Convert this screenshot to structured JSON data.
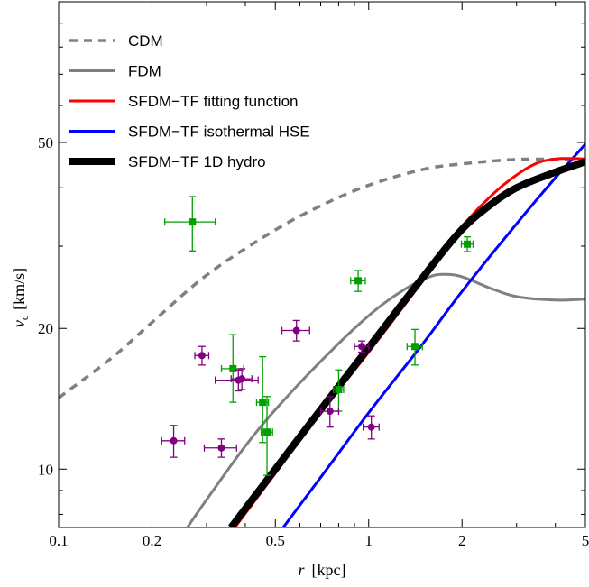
{
  "chart_data": {
    "type": "line",
    "xlabel": {
      "symbol": "r",
      "unit": "[kpc]"
    },
    "ylabel": {
      "symbol": "v",
      "subscript": "c",
      "unit": "[km/s]"
    },
    "xscale": "log",
    "yscale": "log",
    "xlim": [
      0.1,
      5
    ],
    "ylim": [
      7.5,
      100
    ],
    "xticks": [
      {
        "value": 0.1,
        "label": "0.1"
      },
      {
        "value": 0.2,
        "label": "0.2"
      },
      {
        "value": 0.5,
        "label": "0.5"
      },
      {
        "value": 1,
        "label": "1"
      },
      {
        "value": 2,
        "label": "2"
      },
      {
        "value": 5,
        "label": "5"
      }
    ],
    "yticks": [
      {
        "value": 10,
        "label": "10"
      },
      {
        "value": 20,
        "label": "20"
      },
      {
        "value": 50,
        "label": "50"
      }
    ],
    "legend_position": "top-left",
    "series": [
      {
        "name": "CDM",
        "color": "#808080",
        "style": "dashed",
        "width": 3.5,
        "x": [
          0.1,
          0.15,
          0.2,
          0.3,
          0.5,
          0.7,
          1.0,
          1.5,
          2.0,
          3.0,
          4.0,
          5.0
        ],
        "y": [
          14.2,
          17.4,
          20.6,
          26.0,
          32.5,
          36.6,
          40.5,
          43.8,
          45.0,
          46.0,
          46.0,
          45.8
        ]
      },
      {
        "name": "FDM",
        "color": "#808080",
        "style": "solid",
        "width": 3,
        "x": [
          0.26,
          0.3,
          0.4,
          0.5,
          0.7,
          1.0,
          1.3,
          1.6,
          1.8,
          2.0,
          2.5,
          3.0,
          4.0,
          5.0
        ],
        "y": [
          7.5,
          8.6,
          11.2,
          13.4,
          17.0,
          21.3,
          24.2,
          25.9,
          26.1,
          25.8,
          24.3,
          23.4,
          23.0,
          23.1
        ]
      },
      {
        "name": "SFDM−TF fitting function",
        "color": "#ff0000",
        "style": "solid",
        "width": 3,
        "x": [
          0.37,
          0.5,
          0.7,
          1.0,
          1.5,
          2.0,
          2.5,
          3.0,
          3.5,
          4.0,
          4.5,
          5.0
        ],
        "y": [
          7.5,
          9.8,
          13.2,
          17.8,
          25.4,
          33.0,
          38.6,
          42.6,
          45.2,
          46.1,
          46.2,
          46.1
        ]
      },
      {
        "name": "SFDM−TF isothermal HSE",
        "color": "#0000ff",
        "style": "solid",
        "width": 3,
        "x": [
          0.53,
          0.7,
          1.0,
          1.5,
          2.0,
          3.0,
          4.0,
          5.0
        ],
        "y": [
          7.5,
          9.6,
          13.2,
          18.6,
          24.0,
          33.5,
          42.0,
          49.6
        ]
      },
      {
        "name": "SFDM−TF 1D hydro",
        "color": "#000000",
        "style": "solid",
        "width": 8,
        "x": [
          0.36,
          0.5,
          0.7,
          1.0,
          1.5,
          2.0,
          2.5,
          3.0,
          4.0,
          5.0
        ],
        "y": [
          7.5,
          10.0,
          13.4,
          18.2,
          25.8,
          32.6,
          37.0,
          40.0,
          43.2,
          45.5
        ]
      }
    ],
    "data_points": [
      {
        "group": "green",
        "color": "#00a000",
        "marker": "square",
        "x": 0.27,
        "y": 33.8,
        "xerr": [
          0.05,
          0.05
        ],
        "yerr": [
          4.5,
          4.5
        ]
      },
      {
        "group": "green",
        "color": "#00a000",
        "marker": "square",
        "x": 0.365,
        "y": 16.4,
        "xerr": [
          0.03,
          0.03
        ],
        "yerr": [
          2.5,
          3.0
        ]
      },
      {
        "group": "green",
        "color": "#00a000",
        "marker": "square",
        "x": 0.455,
        "y": 13.9,
        "xerr": [
          0.02,
          0.02
        ],
        "yerr": [
          2.5,
          3.5
        ]
      },
      {
        "group": "green",
        "color": "#00a000",
        "marker": "square",
        "x": 0.47,
        "y": 12.0,
        "xerr": [
          0.02,
          0.02
        ],
        "yerr": [
          2.3,
          2.3
        ]
      },
      {
        "group": "green",
        "color": "#00a000",
        "marker": "square",
        "x": 0.8,
        "y": 14.8,
        "xerr": [
          0.03,
          0.03
        ],
        "yerr": [
          1.5,
          1.5
        ]
      },
      {
        "group": "green",
        "color": "#00a000",
        "marker": "square",
        "x": 0.925,
        "y": 25.3,
        "xerr": [
          0.05,
          0.05
        ],
        "yerr": [
          1.3,
          1.3
        ]
      },
      {
        "group": "green",
        "color": "#00a000",
        "marker": "square",
        "x": 1.41,
        "y": 18.3,
        "xerr": [
          0.08,
          0.08
        ],
        "yerr": [
          1.6,
          1.6
        ]
      },
      {
        "group": "green",
        "color": "#00a000",
        "marker": "square",
        "x": 2.08,
        "y": 30.3,
        "xerr": [
          0.09,
          0.09
        ],
        "yerr": [
          1.1,
          1.1
        ]
      },
      {
        "group": "purple",
        "color": "#800080",
        "marker": "circle",
        "x": 0.235,
        "y": 11.5,
        "xerr": [
          0.02,
          0.02
        ],
        "yerr": [
          0.9,
          0.9
        ]
      },
      {
        "group": "purple",
        "color": "#800080",
        "marker": "circle",
        "x": 0.29,
        "y": 17.5,
        "xerr": [
          0.015,
          0.015
        ],
        "yerr": [
          0.8,
          0.8
        ]
      },
      {
        "group": "purple",
        "color": "#800080",
        "marker": "circle",
        "x": 0.335,
        "y": 11.1,
        "xerr": [
          0.04,
          0.04
        ],
        "yerr": [
          0.5,
          0.5
        ]
      },
      {
        "group": "purple",
        "color": "#800080",
        "marker": "circle",
        "x": 0.38,
        "y": 15.5,
        "xerr": [
          0.06,
          0.06
        ],
        "yerr": [
          0.8,
          0.8
        ]
      },
      {
        "group": "purple",
        "color": "#800080",
        "marker": "circle",
        "x": 0.39,
        "y": 15.6,
        "xerr": [
          0.03,
          0.03
        ],
        "yerr": [
          0.8,
          0.8
        ]
      },
      {
        "group": "purple",
        "color": "#800080",
        "marker": "circle",
        "x": 0.585,
        "y": 19.8,
        "xerr": [
          0.06,
          0.06
        ],
        "yerr": [
          1.0,
          1.0
        ]
      },
      {
        "group": "purple",
        "color": "#800080",
        "marker": "circle",
        "x": 0.75,
        "y": 13.3,
        "xerr": [
          0.05,
          0.05
        ],
        "yerr": [
          1.0,
          1.0
        ]
      },
      {
        "group": "purple",
        "color": "#800080",
        "marker": "circle",
        "x": 0.95,
        "y": 18.3,
        "xerr": [
          0.05,
          0.05
        ],
        "yerr": [
          0.5,
          0.5
        ]
      },
      {
        "group": "purple",
        "color": "#800080",
        "marker": "circle",
        "x": 1.02,
        "y": 12.3,
        "xerr": [
          0.06,
          0.06
        ],
        "yerr": [
          0.7,
          0.7
        ]
      }
    ]
  }
}
